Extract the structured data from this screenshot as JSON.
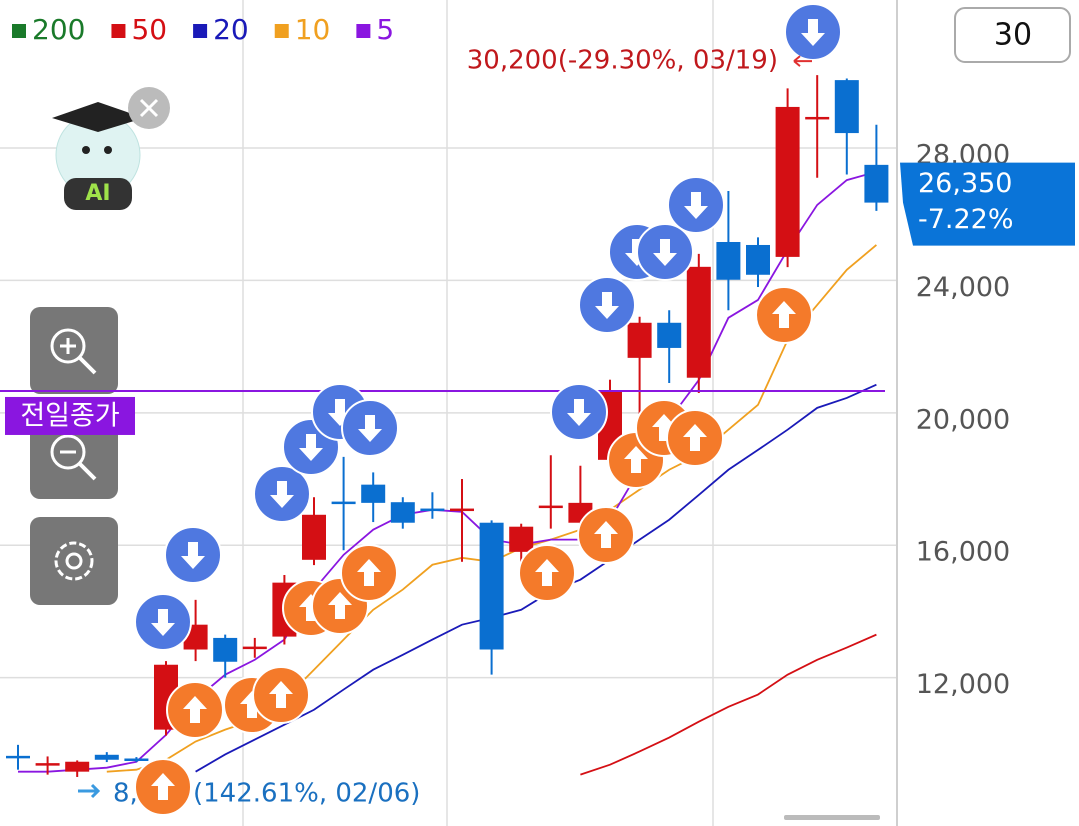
{
  "chart_data": {
    "type": "candlestick",
    "categories": [
      null,
      null,
      null,
      null,
      null,
      null,
      null,
      null,
      null,
      null,
      null,
      null,
      null,
      null,
      null,
      null,
      null,
      null,
      null,
      null,
      null,
      null,
      null,
      null,
      null,
      null,
      null,
      null,
      null,
      null
    ],
    "open": [
      9600,
      9380,
      9160,
      9670,
      9520,
      10430,
      12850,
      13200,
      12900,
      13240,
      15560,
      17280,
      17830,
      17300,
      17070,
      17070,
      16680,
      15800,
      17160,
      16680,
      18580,
      21660,
      22720,
      21060,
      25160,
      25070,
      24710,
      28900,
      30050,
      27490
    ],
    "high": [
      9970,
      9620,
      9500,
      9750,
      9600,
      12500,
      14350,
      13300,
      13200,
      15100,
      17450,
      18670,
      18200,
      17450,
      17600,
      18000,
      16750,
      16650,
      18720,
      18400,
      21000,
      22900,
      23100,
      24800,
      26700,
      25300,
      29800,
      30200,
      30100,
      28700
    ],
    "low": [
      9220,
      9070,
      9000,
      9450,
      9450,
      10250,
      12500,
      12000,
      12600,
      13000,
      15400,
      15850,
      16700,
      16500,
      16800,
      15500,
      12090,
      15000,
      16500,
      16300,
      18300,
      19900,
      20900,
      20600,
      23100,
      23800,
      24400,
      27100,
      27200,
      26100
    ],
    "close": [
      9600,
      9380,
      9460,
      9520,
      9520,
      12390,
      13600,
      12480,
      12900,
      14870,
      16920,
      17280,
      17280,
      16680,
      17070,
      17070,
      12850,
      16560,
      17160,
      17280,
      20630,
      22720,
      21960,
      24410,
      24020,
      24170,
      29240,
      28900,
      28450,
      26350
    ],
    "candle_colors": [
      "#0a6fd0",
      "#d40f14",
      "#d40f14",
      "#0a6fd0",
      "#0a6fd0",
      "#d40f14",
      "#d40f14",
      "#0a6fd0",
      "#d40f14",
      "#d40f14",
      "#d40f14",
      "#0a6fd0",
      "#0a6fd0",
      "#0a6fd0",
      "#0a6fd0",
      "#d40f14",
      "#0a6fd0",
      "#d40f14",
      "#d40f14",
      "#d40f14",
      "#d40f14",
      "#d40f14",
      "#0a6fd0",
      "#d40f14",
      "#0a6fd0",
      "#0a6fd0",
      "#d40f14",
      "#d40f14",
      "#0a6fd0",
      "#0a6fd0"
    ],
    "series": [
      {
        "name": "200",
        "color": "#1a7a2a",
        "values": [
          null,
          null,
          null,
          null,
          null,
          null,
          null,
          null,
          null,
          null,
          null,
          null,
          null,
          null,
          null,
          null,
          null,
          null,
          null,
          null,
          null,
          null,
          null,
          null,
          null,
          null,
          null,
          null,
          null,
          null
        ]
      },
      {
        "name": "50",
        "color": "#d40f14",
        "values": [
          null,
          null,
          null,
          null,
          null,
          null,
          null,
          null,
          null,
          null,
          null,
          null,
          null,
          null,
          null,
          null,
          null,
          null,
          null,
          9070,
          9370,
          9770,
          10190,
          10670,
          11120,
          11490,
          12090,
          12540,
          12910,
          13300
        ]
      },
      {
        "name": "20",
        "color": "#1a1ab8",
        "values": [
          null,
          null,
          null,
          null,
          null,
          null,
          9160,
          9680,
          10130,
          10580,
          11030,
          11640,
          12240,
          12690,
          13150,
          13600,
          13810,
          14050,
          14600,
          14960,
          15560,
          16170,
          16770,
          17520,
          18280,
          18880,
          19490,
          20150,
          20450,
          20850
        ]
      },
      {
        "name": "10",
        "color": "#f0a020",
        "values": [
          null,
          null,
          null,
          9160,
          9220,
          9520,
          10070,
          10430,
          10730,
          11340,
          12240,
          13150,
          14050,
          14660,
          15410,
          15620,
          15500,
          15920,
          16170,
          16470,
          17070,
          17680,
          18280,
          18730,
          19490,
          20240,
          22200,
          23260,
          24320,
          25070
        ]
      },
      {
        "name": "5",
        "color": "#8a16e0",
        "values": [
          9160,
          9160,
          9220,
          9280,
          9460,
          10270,
          11340,
          12090,
          12540,
          13150,
          14660,
          15710,
          16470,
          16920,
          17070,
          17010,
          16170,
          16020,
          16170,
          16170,
          16770,
          18280,
          19790,
          20990,
          22870,
          23410,
          24920,
          26280,
          27030,
          27280
        ]
      }
    ],
    "ylim": [
      7700,
      32470
    ],
    "yticks": [
      {
        "value": 12000,
        "label": "12,000"
      },
      {
        "value": 16000,
        "label": "16,000"
      },
      {
        "value": 20000,
        "label": "20,000"
      },
      {
        "value": 24000,
        "label": "24,000"
      },
      {
        "value": 28000,
        "label": "28,000"
      }
    ],
    "grid": true,
    "period": "30",
    "reference_line": {
      "value": 20660,
      "label": "전일종가",
      "color": "#8a16e0"
    },
    "last_price": {
      "value": 26350,
      "label": "26,350",
      "change": "-7.22%"
    },
    "high_annotation": {
      "value": 30200,
      "label": "30,200(-29.30%, 03/19)"
    },
    "low_annotation": {
      "prefix": "8,",
      "label": "(142.61%, 02/06)"
    },
    "badge": "AI"
  }
}
